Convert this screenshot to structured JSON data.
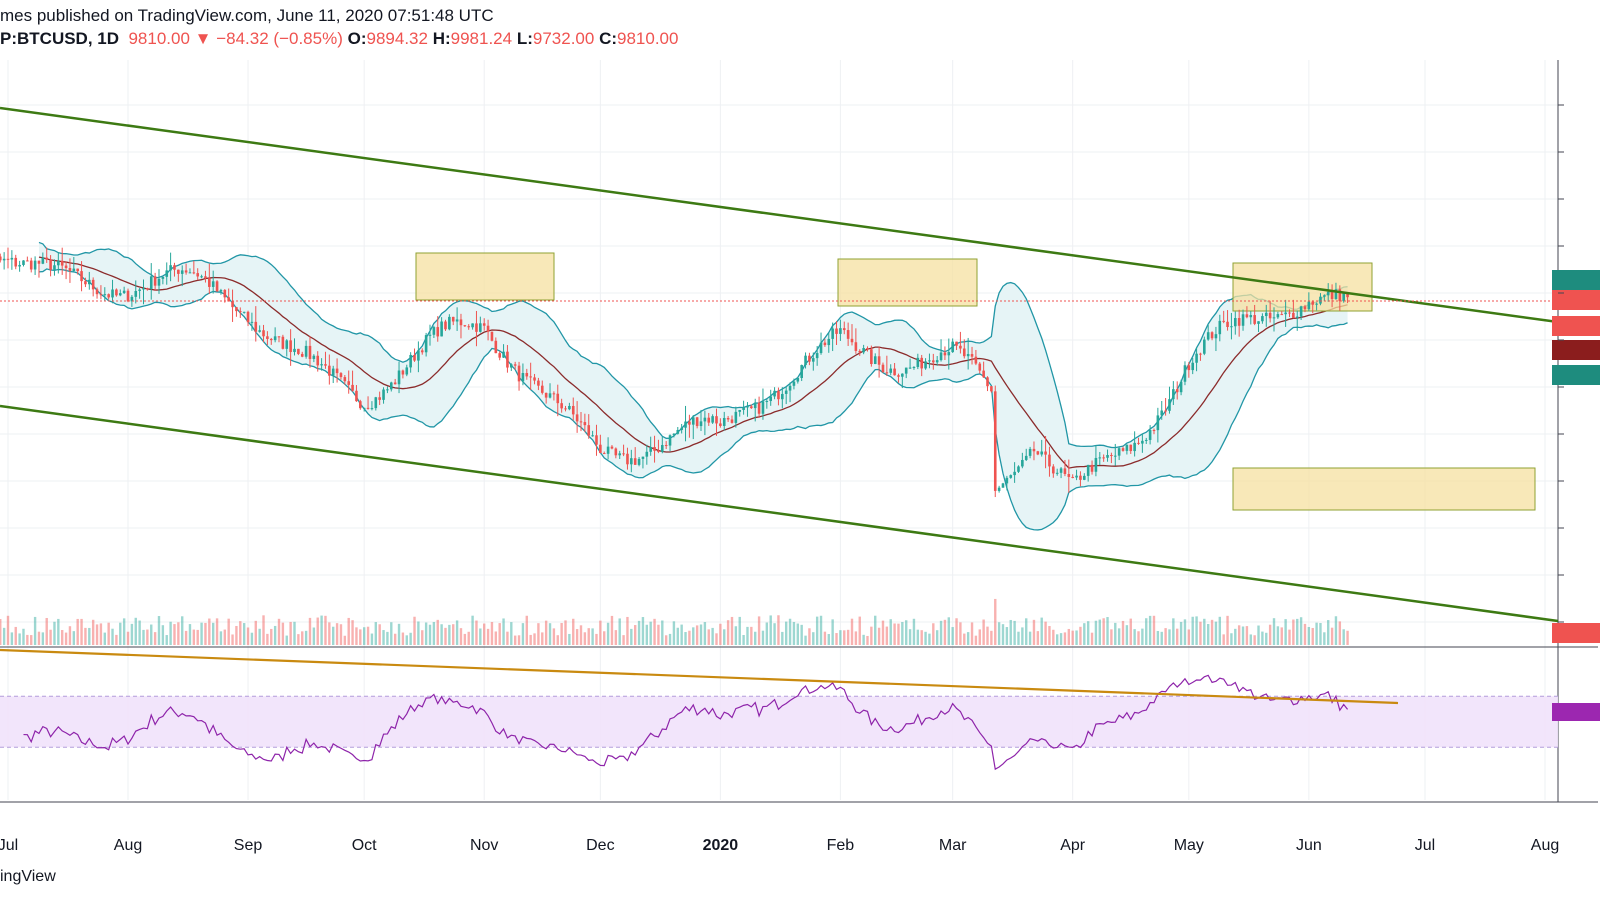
{
  "header": {
    "publisher_line": "mes published on TradingView.com, June 11, 2020 07:51:48 UTC",
    "symbol": "P:BTCUSD, 1D",
    "last": "9810.00",
    "change_arrow": "▼",
    "change": "−84.32 (−0.85%)",
    "o_label": "O:",
    "o_value": "9894.32",
    "h_label": "H:",
    "h_value": "9981.24",
    "l_label": "L:",
    "l_value": "9732.00",
    "c_label": "C:",
    "c_value": "9810.00"
  },
  "footer": {
    "brand": "ingView"
  },
  "colors": {
    "up": "#26a69a",
    "down": "#ef5350",
    "channel": "#3d7a13",
    "bollinger": "#2196a6",
    "bollinger_fill": "#e6f4f6",
    "sma": "#8b2b2b",
    "rsi": "#8e24aa",
    "rsi_band": "#f1e2fb",
    "rsi_trend": "#c98a10",
    "zone_fill": "#f6e0a0",
    "zone_stroke": "#8fa232"
  },
  "chart_data": {
    "type": "candlestick",
    "x_axis": {
      "labels": [
        "Jul",
        "Aug",
        "Sep",
        "Oct",
        "Nov",
        "Dec",
        "2020",
        "Feb",
        "Mar",
        "Apr",
        "May",
        "Jun",
        "Jul",
        "Aug"
      ],
      "range": [
        "2019-07-01",
        "2020-08-01"
      ]
    },
    "last_price": 9810,
    "series_approx_closes": {
      "description": "approximate close levels at month starts",
      "x": [
        "2019-07-01",
        "2019-08-01",
        "2019-09-01",
        "2019-10-01",
        "2019-11-01",
        "2019-12-01",
        "2020-01-01",
        "2020-02-01",
        "2020-03-01",
        "2020-04-01",
        "2020-05-01",
        "2020-06-01",
        "2020-06-11"
      ],
      "close": [
        10800,
        10100,
        9600,
        8300,
        9150,
        7400,
        7200,
        9350,
        8600,
        6450,
        8700,
        9700,
        9810
      ]
    },
    "indicators": [
      "Bollinger Bands (20, 2)",
      "SMA 20",
      "Volume",
      "RSI"
    ],
    "rsi": {
      "band": [
        30,
        70
      ]
    },
    "drawings": [
      "descending channel",
      "supply/demand zones",
      "RSI trendline"
    ]
  }
}
